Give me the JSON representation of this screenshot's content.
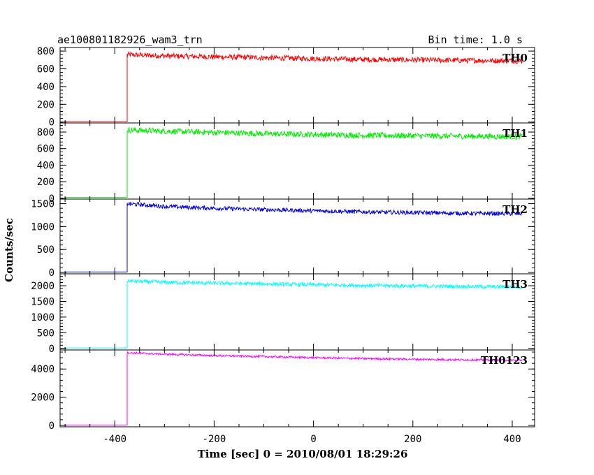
{
  "chart_data": {
    "type": "line",
    "title": "ae100801182926_wam3_trn",
    "subtitle": "Bin time: 1.0 s",
    "xlabel": "Time [sec] 0 = 2010/08/01 18:29:26",
    "ylabel": "Counts/sec",
    "xlim": [
      -510,
      445
    ],
    "x_ticks": [
      -400,
      -200,
      0,
      200,
      400
    ],
    "trigger_time": -375,
    "x_end": 420,
    "grid": false,
    "panels": [
      {
        "name": "TH0",
        "color": "#ff0000",
        "ylim": [
          -10,
          840
        ],
        "y_ticks": [
          0,
          200,
          400,
          600,
          800
        ],
        "baseline": 5,
        "series": {
          "x": [
            -375,
            -300,
            -200,
            -100,
            0,
            100,
            200,
            300,
            420
          ],
          "values": [
            760,
            745,
            735,
            725,
            715,
            705,
            700,
            695,
            690
          ]
        },
        "noise": 30
      },
      {
        "name": "TH1",
        "color": "#00ee00",
        "ylim": [
          -10,
          910
        ],
        "y_ticks": [
          0,
          200,
          400,
          600,
          800
        ],
        "baseline": 10,
        "series": {
          "x": [
            -375,
            -300,
            -200,
            -100,
            0,
            100,
            200,
            300,
            420
          ],
          "values": [
            825,
            810,
            795,
            780,
            770,
            760,
            755,
            750,
            745
          ]
        },
        "noise": 35
      },
      {
        "name": "TH2",
        "color": "#0000dd",
        "ylim": [
          -30,
          1600
        ],
        "y_ticks": [
          0,
          500,
          1000,
          1500
        ],
        "baseline": 10,
        "series": {
          "x": [
            -375,
            -300,
            -200,
            -100,
            0,
            100,
            200,
            300,
            420
          ],
          "values": [
            1500,
            1440,
            1400,
            1370,
            1345,
            1320,
            1305,
            1290,
            1280
          ]
        },
        "noise": 45
      },
      {
        "name": "TH3",
        "color": "#00ffff",
        "ylim": [
          -50,
          2380
        ],
        "y_ticks": [
          0,
          500,
          1000,
          1500,
          2000
        ],
        "baseline": 15,
        "series": {
          "x": [
            -375,
            -300,
            -200,
            -100,
            0,
            100,
            200,
            300,
            420
          ],
          "values": [
            2150,
            2110,
            2080,
            2060,
            2030,
            2010,
            1990,
            1975,
            1960
          ]
        },
        "noise": 60
      },
      {
        "name": "TH0123",
        "color": "#ff00ff",
        "ylim": [
          -100,
          5350
        ],
        "y_ticks": [
          0,
          2000,
          4000
        ],
        "baseline": 30,
        "series": {
          "x": [
            -375,
            -300,
            -200,
            -100,
            0,
            100,
            200,
            300,
            420
          ],
          "values": [
            5150,
            5050,
            4950,
            4880,
            4800,
            4740,
            4690,
            4650,
            4620
          ]
        },
        "noise": 70
      }
    ]
  }
}
